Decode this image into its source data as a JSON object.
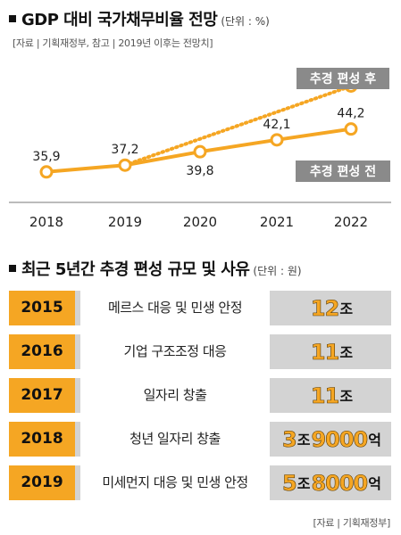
{
  "header1": {
    "title": "GDP 대비 국가채무비율 전망",
    "unit": "(단위 : %)"
  },
  "source1": "[자료 | 기획재정부, 참고 | 2019년 이후는 전망치]",
  "chart_data": {
    "type": "line",
    "categories": [
      "2018",
      "2019",
      "2020",
      "2021",
      "2022"
    ],
    "ylim": [
      30,
      55
    ],
    "series": [
      {
        "name": "추경 편성 전",
        "style": "solid",
        "values": [
          35.9,
          37.2,
          39.8,
          42.1,
          44.2
        ],
        "labels": [
          "35,9",
          "37,2",
          "39,8",
          "42,1",
          "44,2"
        ]
      },
      {
        "name": "추경 편성 후",
        "style": "dotted",
        "values": [
          null,
          37.2,
          null,
          null,
          52.5
        ]
      }
    ],
    "colors": {
      "line": "#f5a623",
      "label_bg": "#8a8a8a"
    }
  },
  "header2": {
    "title": "최근 5년간 추경 편성 규모 및 사유",
    "unit": "(단위 : 원)"
  },
  "table": {
    "rows": [
      {
        "year": "2015",
        "reason": "메르스 대응 및 민생 안정",
        "amount": [
          {
            "n": "12"
          },
          {
            "u": "조"
          }
        ]
      },
      {
        "year": "2016",
        "reason": "기업 구조조정 대응",
        "amount": [
          {
            "n": "11"
          },
          {
            "u": "조"
          }
        ]
      },
      {
        "year": "2017",
        "reason": "일자리 창출",
        "amount": [
          {
            "n": "11"
          },
          {
            "u": "조"
          }
        ]
      },
      {
        "year": "2018",
        "reason": "청년 일자리 창출",
        "amount": [
          {
            "n": "3"
          },
          {
            "u": "조"
          },
          {
            "n": "9000"
          },
          {
            "u": "억"
          }
        ]
      },
      {
        "year": "2019",
        "reason": "미세먼지 대응 및 민생 안정",
        "amount": [
          {
            "n": "5"
          },
          {
            "u": "조"
          },
          {
            "n": "8000"
          },
          {
            "u": "억"
          }
        ]
      }
    ]
  },
  "source2": "[자료 | 기획재정부]"
}
